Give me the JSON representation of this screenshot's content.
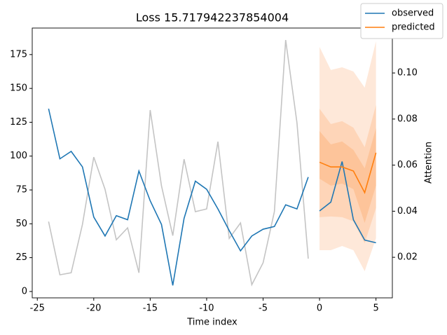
{
  "chart_data": {
    "type": "line",
    "title": "Loss 15.717942237854004",
    "xlabel": "Time index",
    "y2label": "Attention",
    "xlim": [
      -25.45,
      6.45
    ],
    "xticks": [
      -25,
      -20,
      -15,
      -10,
      -5,
      0,
      5
    ],
    "ylim": [
      -4.7,
      194.6
    ],
    "yticks": [
      0,
      25,
      50,
      75,
      100,
      125,
      150,
      175
    ],
    "y2lim": [
      0.0024,
      0.1195
    ],
    "y2ticks": [
      0.02,
      0.04,
      0.06,
      0.08,
      {
        "value": 0.1,
        "label": "0.10"
      }
    ],
    "legend": "upper right",
    "series": [
      {
        "name": "observed",
        "color": "#1f77b4",
        "x": [
          -24,
          -23,
          -22,
          -21,
          -20,
          -19,
          -18,
          -17,
          -16,
          -15,
          -14,
          -13,
          -12,
          -11,
          -10,
          -9,
          -8,
          -7,
          -6,
          -5,
          -4,
          -3,
          -2,
          -1,
          null,
          0,
          1,
          2,
          3,
          4,
          5
        ],
        "values": [
          135,
          98,
          103.5,
          92,
          55,
          41,
          56,
          53,
          89,
          67,
          49.5,
          4.5,
          54,
          81.5,
          75.5,
          61,
          45,
          30,
          41,
          46,
          48,
          64,
          61,
          84.5,
          null,
          59.5,
          66,
          96,
          53,
          38,
          36
        ]
      },
      {
        "name": "predicted",
        "color": "#ff7f0e",
        "x": [
          0,
          1,
          2,
          3,
          4,
          5
        ],
        "values": [
          95.5,
          92,
          92,
          89,
          73,
          102.5
        ]
      },
      {
        "color": "#c4c4c4",
        "axis": "y2",
        "x": [
          -24,
          -23,
          -22,
          -21,
          -20,
          -19,
          -18,
          -17,
          -16,
          -15,
          -14,
          -13,
          -12,
          -11,
          -10,
          -9,
          -8,
          -7,
          -6,
          -5,
          -4,
          -3,
          -2,
          -1
        ],
        "values": [
          0.0355,
          0.0124,
          0.0133,
          0.0343,
          0.0635,
          0.0495,
          0.0276,
          0.0328,
          0.0133,
          0.0839,
          0.051,
          0.0294,
          0.0626,
          0.0398,
          0.041,
          0.0702,
          0.0282,
          0.0349,
          0.0081,
          0.0176,
          0.0398,
          0.1143,
          0.0784,
          0.0194
        ]
      }
    ],
    "bands": [
      {
        "color": "#fee8d9",
        "upper": [
          180.6,
          163.6,
          165.6,
          162.5,
          150.6,
          184.8
        ],
        "lower": [
          30.5,
          30.5,
          33.6,
          30.5,
          15,
          39.3
        ]
      },
      {
        "color": "#fed5b8",
        "upper": [
          135,
          123.7,
          125.8,
          121,
          106.6,
          137.7
        ],
        "lower": [
          54.9,
          55.4,
          54.9,
          51.8,
          35.7,
          61.6
        ]
      },
      {
        "color": "#fdc49a",
        "upper": [
          118.5,
          108.7,
          110.8,
          104.6,
          91,
          120.6
        ],
        "lower": [
          83.3,
          78.2,
          79.7,
          75.6,
          50.7,
          78.2
        ]
      }
    ]
  }
}
